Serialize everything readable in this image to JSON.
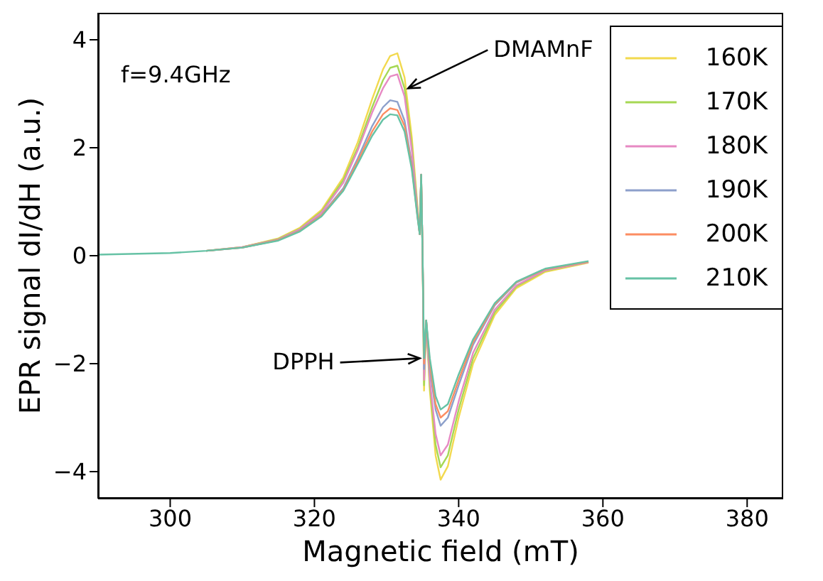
{
  "chart_data": {
    "type": "line",
    "xlabel": "Magnetic field (mT)",
    "ylabel": "EPR signal dI/dH (a.u.)",
    "x": [
      290,
      300,
      305,
      310,
      315,
      318,
      321,
      324,
      326,
      328,
      329.5,
      330.5,
      331.5,
      332.5,
      333.5,
      334.3,
      334.6,
      334.8,
      335,
      335.2,
      335.5,
      336,
      336.8,
      337.5,
      338.5,
      340,
      342,
      345,
      348,
      352,
      358
    ],
    "series": [
      {
        "name": "160K",
        "color": "#f2d94e",
        "values": [
          null,
          null,
          0.09,
          0.16,
          0.32,
          0.52,
          0.85,
          1.45,
          2.1,
          2.9,
          3.45,
          3.7,
          3.75,
          3.3,
          2.2,
          0.9,
          0.4,
          1.5,
          0.0,
          -2.5,
          -1.2,
          -2.5,
          -3.7,
          -4.15,
          -3.9,
          -3.0,
          -2.0,
          -1.1,
          -0.6,
          -0.3,
          -0.13
        ]
      },
      {
        "name": "170K",
        "color": "#a6d854",
        "values": [
          null,
          null,
          0.09,
          0.16,
          0.31,
          0.5,
          0.82,
          1.4,
          2.0,
          2.75,
          3.25,
          3.48,
          3.52,
          3.1,
          2.05,
          0.85,
          0.4,
          1.5,
          0.0,
          -2.4,
          -1.2,
          -2.4,
          -3.5,
          -3.92,
          -3.7,
          -2.85,
          -1.9,
          -1.05,
          -0.57,
          -0.28,
          -0.12
        ]
      },
      {
        "name": "180K",
        "color": "#e78ac3",
        "values": [
          null,
          null,
          0.09,
          0.16,
          0.3,
          0.49,
          0.8,
          1.35,
          1.95,
          2.65,
          3.1,
          3.32,
          3.36,
          2.95,
          1.95,
          0.8,
          0.4,
          1.5,
          0.0,
          -2.3,
          -1.2,
          -2.3,
          -3.3,
          -3.7,
          -3.5,
          -2.7,
          -1.8,
          -1.0,
          -0.55,
          -0.27,
          -0.12
        ]
      },
      {
        "name": "190K",
        "color": "#8da0cb",
        "values": [
          null,
          null,
          0.09,
          0.15,
          0.29,
          0.47,
          0.76,
          1.25,
          1.8,
          2.4,
          2.75,
          2.88,
          2.85,
          2.5,
          1.7,
          0.75,
          0.4,
          1.5,
          0.0,
          -2.1,
          -1.2,
          -2.1,
          -2.85,
          -3.15,
          -3.0,
          -2.4,
          -1.65,
          -0.92,
          -0.5,
          -0.25,
          -0.11
        ]
      },
      {
        "name": "200K",
        "color": "#fc8d62",
        "values": [
          null,
          null,
          0.09,
          0.15,
          0.29,
          0.46,
          0.75,
          1.22,
          1.75,
          2.3,
          2.62,
          2.73,
          2.7,
          2.4,
          1.65,
          0.72,
          0.4,
          1.5,
          0.0,
          -2.0,
          -1.2,
          -2.0,
          -2.75,
          -3.0,
          -2.88,
          -2.3,
          -1.6,
          -0.9,
          -0.49,
          -0.25,
          -0.11
        ]
      },
      {
        "name": "210K",
        "color": "#66c2a5",
        "values": [
          0.02,
          0.05,
          0.09,
          0.15,
          0.28,
          0.45,
          0.73,
          1.2,
          1.7,
          2.22,
          2.52,
          2.62,
          2.6,
          2.3,
          1.6,
          0.7,
          0.4,
          1.5,
          0.0,
          -1.9,
          -1.2,
          -1.9,
          -2.6,
          -2.85,
          -2.75,
          -2.2,
          -1.55,
          -0.88,
          -0.48,
          -0.24,
          -0.1
        ]
      }
    ],
    "xlim": [
      290,
      385
    ],
    "xticks": [
      300,
      320,
      340,
      360,
      380
    ],
    "ylim": [
      -4.5,
      4.5
    ],
    "yticks": [
      -4,
      -2,
      0,
      2,
      4
    ],
    "annotations": [
      "f=9.4GHz",
      {
        "text": "DMAMnF",
        "x": 333,
        "y": 3.1
      },
      {
        "text": "DPPH",
        "x": 334.6,
        "y": -1.9
      }
    ],
    "legend": "top right",
    "grid": false,
    "marker": "none",
    "line_style": "solid"
  }
}
